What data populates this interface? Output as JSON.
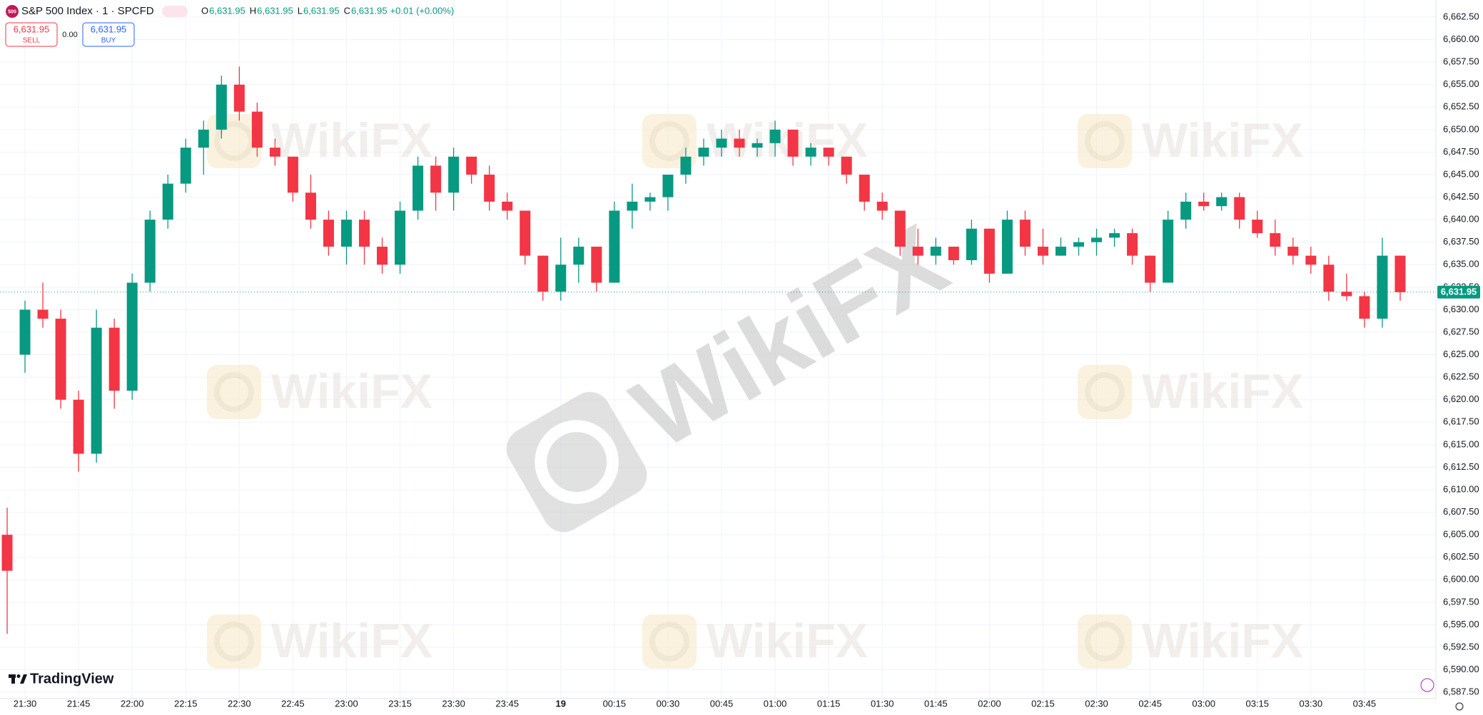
{
  "header": {
    "logo": "500",
    "title": "S&P 500 Index · 1 · SPCFD",
    "ohlc": [
      {
        "key": "O",
        "value": "6,631.95"
      },
      {
        "key": "H",
        "value": "6,631.95"
      },
      {
        "key": "L",
        "value": "6,631.95"
      },
      {
        "key": "C",
        "value": "6,631.95"
      }
    ],
    "change": "+0.01 (+0.00%)",
    "sell": {
      "price": "6,631.95",
      "label": "SELL"
    },
    "spread": "0.00",
    "buy": {
      "price": "6,631.95",
      "label": "BUY"
    }
  },
  "branding": "TradingView",
  "watermark": "WikiFX",
  "price_tag": "6,631.95",
  "chart_data": {
    "type": "candlestick",
    "up_color": "#089981",
    "down_color": "#f23645",
    "grid": true,
    "xlim": [
      "21:23",
      "04:05"
    ],
    "ylim": [
      6586.8,
      6664.4
    ],
    "last_price": 6631.95,
    "xticks": [
      "21:30",
      "21:45",
      "22:00",
      "22:15",
      "22:30",
      "22:45",
      "23:00",
      "23:15",
      "23:30",
      "23:45",
      {
        "value": "00:00",
        "label": "19"
      },
      "00:15",
      "00:30",
      "00:45",
      "01:00",
      "01:15",
      "01:30",
      "01:45",
      "02:00",
      "02:15",
      "02:30",
      "02:45",
      "03:00",
      "03:15",
      "03:30",
      "03:45"
    ],
    "yticks": [
      {
        "value": 6587.5,
        "label": "6,587.50"
      },
      {
        "value": 6590,
        "label": "6,590.00"
      },
      {
        "value": 6592.5,
        "label": "6,592.50"
      },
      {
        "value": 6595,
        "label": "6,595.00"
      },
      {
        "value": 6597.5,
        "label": "6,597.50"
      },
      {
        "value": 6600,
        "label": "6,600.00"
      },
      {
        "value": 6602.5,
        "label": "6,602.50"
      },
      {
        "value": 6605,
        "label": "6,605.00"
      },
      {
        "value": 6607.5,
        "label": "6,607.50"
      },
      {
        "value": 6610,
        "label": "6,610.00"
      },
      {
        "value": 6612.5,
        "label": "6,612.50"
      },
      {
        "value": 6615,
        "label": "6,615.00"
      },
      {
        "value": 6617.5,
        "label": "6,617.50"
      },
      {
        "value": 6620,
        "label": "6,620.00"
      },
      {
        "value": 6622.5,
        "label": "6,622.50"
      },
      {
        "value": 6625,
        "label": "6,625.00"
      },
      {
        "value": 6627.5,
        "label": "6,627.50"
      },
      {
        "value": 6630,
        "label": "6,630.00"
      },
      {
        "value": 6632.5,
        "label": "6,632.50"
      },
      {
        "value": 6635,
        "label": "6,635.00"
      },
      {
        "value": 6637.5,
        "label": "6,637.50"
      },
      {
        "value": 6640,
        "label": "6,640.00"
      },
      {
        "value": 6642.5,
        "label": "6,642.50"
      },
      {
        "value": 6645,
        "label": "6,645.00"
      },
      {
        "value": 6647.5,
        "label": "6,647.50"
      },
      {
        "value": 6650,
        "label": "6,650.00"
      },
      {
        "value": 6652.5,
        "label": "6,652.50"
      },
      {
        "value": 6655,
        "label": "6,655.00"
      },
      {
        "value": 6657.5,
        "label": "6,657.50"
      },
      {
        "value": 6660,
        "label": "6,660.00"
      },
      {
        "value": 6662.5,
        "label": "6,662.50"
      }
    ],
    "x": [
      "21:25",
      "21:30",
      "21:35",
      "21:40",
      "21:45",
      "21:50",
      "21:55",
      "22:00",
      "22:05",
      "22:10",
      "22:15",
      "22:20",
      "22:25",
      "22:30",
      "22:35",
      "22:40",
      "22:45",
      "22:50",
      "22:55",
      "23:00",
      "23:05",
      "23:10",
      "23:15",
      "23:20",
      "23:25",
      "23:30",
      "23:35",
      "23:40",
      "23:45",
      "23:50",
      "23:55",
      "00:00",
      "00:05",
      "00:10",
      "00:15",
      "00:20",
      "00:25",
      "00:30",
      "00:35",
      "00:40",
      "00:45",
      "00:50",
      "00:55",
      "01:00",
      "01:05",
      "01:10",
      "01:15",
      "01:20",
      "01:25",
      "01:30",
      "01:35",
      "01:40",
      "01:45",
      "01:50",
      "01:55",
      "02:00",
      "02:05",
      "02:10",
      "02:15",
      "02:20",
      "02:25",
      "02:30",
      "02:35",
      "02:40",
      "02:45",
      "02:50",
      "02:55",
      "03:00",
      "03:05",
      "03:10",
      "03:15",
      "03:20",
      "03:25",
      "03:30",
      "03:35",
      "03:40",
      "03:45",
      "03:50",
      "03:55"
    ],
    "open": [
      6605,
      6625,
      6630,
      6629,
      6620,
      6614,
      6628,
      6621,
      6633,
      6640,
      6644,
      6648,
      6650,
      6655,
      6652,
      6648,
      6647,
      6643,
      6640,
      6637,
      6640,
      6637,
      6635,
      6641,
      6646,
      6643,
      6647,
      6645,
      6642,
      6641,
      6636,
      6632,
      6635,
      6637,
      6633,
      6641,
      6642,
      6642.5,
      6645,
      6647,
      6648,
      6649,
      6648,
      6648.5,
      6650,
      6647,
      6648,
      6647,
      6645,
      6642,
      6641,
      6637,
      6636,
      6637,
      6635.5,
      6639,
      6634,
      6640,
      6637,
      6636,
      6637,
      6637.5,
      6638,
      6638.5,
      6636,
      6633,
      6640,
      6642,
      6641.5,
      6642.5,
      6640,
      6638.5,
      6637,
      6636,
      6635,
      6632,
      6631.5,
      6629,
      6636
    ],
    "high": [
      6608,
      6631,
      6633,
      6630,
      6621,
      6630,
      6629,
      6634,
      6641,
      6645,
      6649,
      6651,
      6656,
      6657,
      6653,
      6649,
      6647,
      6645,
      6641,
      6641,
      6641,
      6638,
      6642,
      6647,
      6647,
      6648,
      6647,
      6646,
      6643,
      6641,
      6636,
      6638,
      6638,
      6637,
      6642,
      6644,
      6643,
      6645,
      6648,
      6649,
      6650,
      6650,
      6649,
      6651,
      6650,
      6648.5,
      6648,
      6647,
      6645,
      6643,
      6641,
      6639,
      6638,
      6637,
      6640,
      6639,
      6641,
      6641,
      6639,
      6638,
      6638,
      6639,
      6639,
      6639,
      6636,
      6641,
      6643,
      6643,
      6643,
      6643,
      6641,
      6640,
      6638,
      6637,
      6636,
      6634,
      6632,
      6638,
      6636
    ],
    "low": [
      6594,
      6623,
      6628,
      6619,
      6612,
      6613,
      6619,
      6620,
      6632,
      6639,
      6643,
      6645,
      6649,
      6651,
      6647,
      6646,
      6642,
      6639,
      6636,
      6635,
      6635,
      6634,
      6634,
      6640,
      6641,
      6641,
      6644,
      6641,
      6640,
      6635,
      6631,
      6631,
      6633,
      6632,
      6633,
      6639,
      6641,
      6641,
      6644,
      6646,
      6647,
      6647,
      6647,
      6647,
      6646,
      6646,
      6646,
      6644,
      6641,
      6640,
      6636,
      6635,
      6635,
      6635,
      6635,
      6633,
      6634,
      6636,
      6635,
      6636,
      6636,
      6636,
      6637,
      6635,
      6632,
      6633,
      6639,
      6641,
      6641,
      6639,
      6638,
      6636,
      6635,
      6634,
      6631,
      6631,
      6628,
      6628,
      6631
    ],
    "close": [
      6601,
      6630,
      6629,
      6620,
      6614,
      6628,
      6621,
      6633,
      6640,
      6644,
      6648,
      6650,
      6655,
      6652,
      6648,
      6647,
      6643,
      6640,
      6637,
      6640,
      6637,
      6635,
      6641,
      6646,
      6643,
      6647,
      6645,
      6642,
      6641,
      6636,
      6632,
      6635,
      6637,
      6633,
      6641,
      6642,
      6642.5,
      6645,
      6647,
      6648,
      6649,
      6648,
      6648.5,
      6650,
      6647,
      6648,
      6647,
      6645,
      6642,
      6641,
      6637,
      6636,
      6637,
      6635.5,
      6639,
      6634,
      6640,
      6637,
      6636,
      6637,
      6637.5,
      6638,
      6638.5,
      6636,
      6633,
      6640,
      6642,
      6641.5,
      6642.5,
      6640,
      6638.5,
      6637,
      6636,
      6635,
      6632,
      6631.5,
      6629,
      6636,
      6631.95
    ]
  }
}
